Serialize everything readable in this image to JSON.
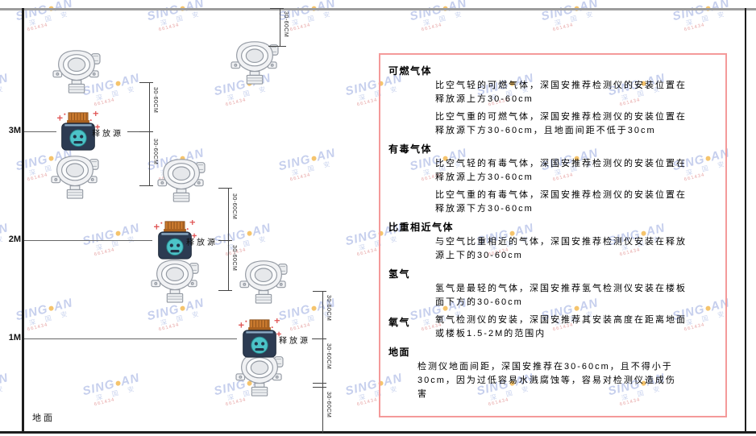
{
  "watermark": {
    "brand_a": "SING",
    "brand_b": "AN",
    "sub": "深 国 安",
    "code": "661434"
  },
  "diagram": {
    "ground_label": "地面",
    "release_source_label": "释放源",
    "dimension_label": "30-60CM",
    "levels": [
      {
        "label": "3M"
      },
      {
        "label": "2M"
      },
      {
        "label": "1M"
      }
    ]
  },
  "panel": {
    "sections": [
      {
        "heading": "可燃气体",
        "paragraphs": [
          "比空气轻的可燃气体，深国安推荐检测仪的安装位置在释放源上方30-60cm",
          "比空气重的可燃气体，深国安推荐检测仪的安装位置在释放源下方30-60cm，且地面间距不低于30cm"
        ]
      },
      {
        "heading": "有毒气体",
        "paragraphs": [
          "比空气轻的有毒气体，深国安推荐检测仪的安装位置在释放源上方30-60cm",
          "比空气重的有毒气体，深国安推荐检测仪的安装位置在释放源下方30-60cm"
        ]
      },
      {
        "heading": "比重相近气体",
        "paragraphs": [
          "与空气比重相近的气体，深国安推荐检测仪安装在释放源上下的30-60cm"
        ]
      },
      {
        "heading": "氢气",
        "paragraphs": [
          "氢气是最轻的气体，深国安推荐氢气检测仪安装在楼板面下方的30-60cm"
        ]
      },
      {
        "heading": "氧气",
        "paragraphs": [
          "氧气检测仪的安装，深国安推荐其安装高度在距离地面或楼板1.5-2M的范围内"
        ]
      },
      {
        "heading": "地面",
        "paragraphs": [
          "检测仪地面间距，深国安推荐在30-60cm，且不得小于30cm，因为过低容易水溅腐蚀等，容易对检测仪造成伤害"
        ]
      }
    ]
  },
  "colors": {
    "panel_border": "#f49a9a",
    "watermark_blue": "#b3bfe8",
    "watermark_dot": "#f2b13d",
    "watermark_code_red": "#e08a8a",
    "source_body": "#2c3b52",
    "source_cap": "#c9792e",
    "source_face": "#4cc3c8"
  }
}
